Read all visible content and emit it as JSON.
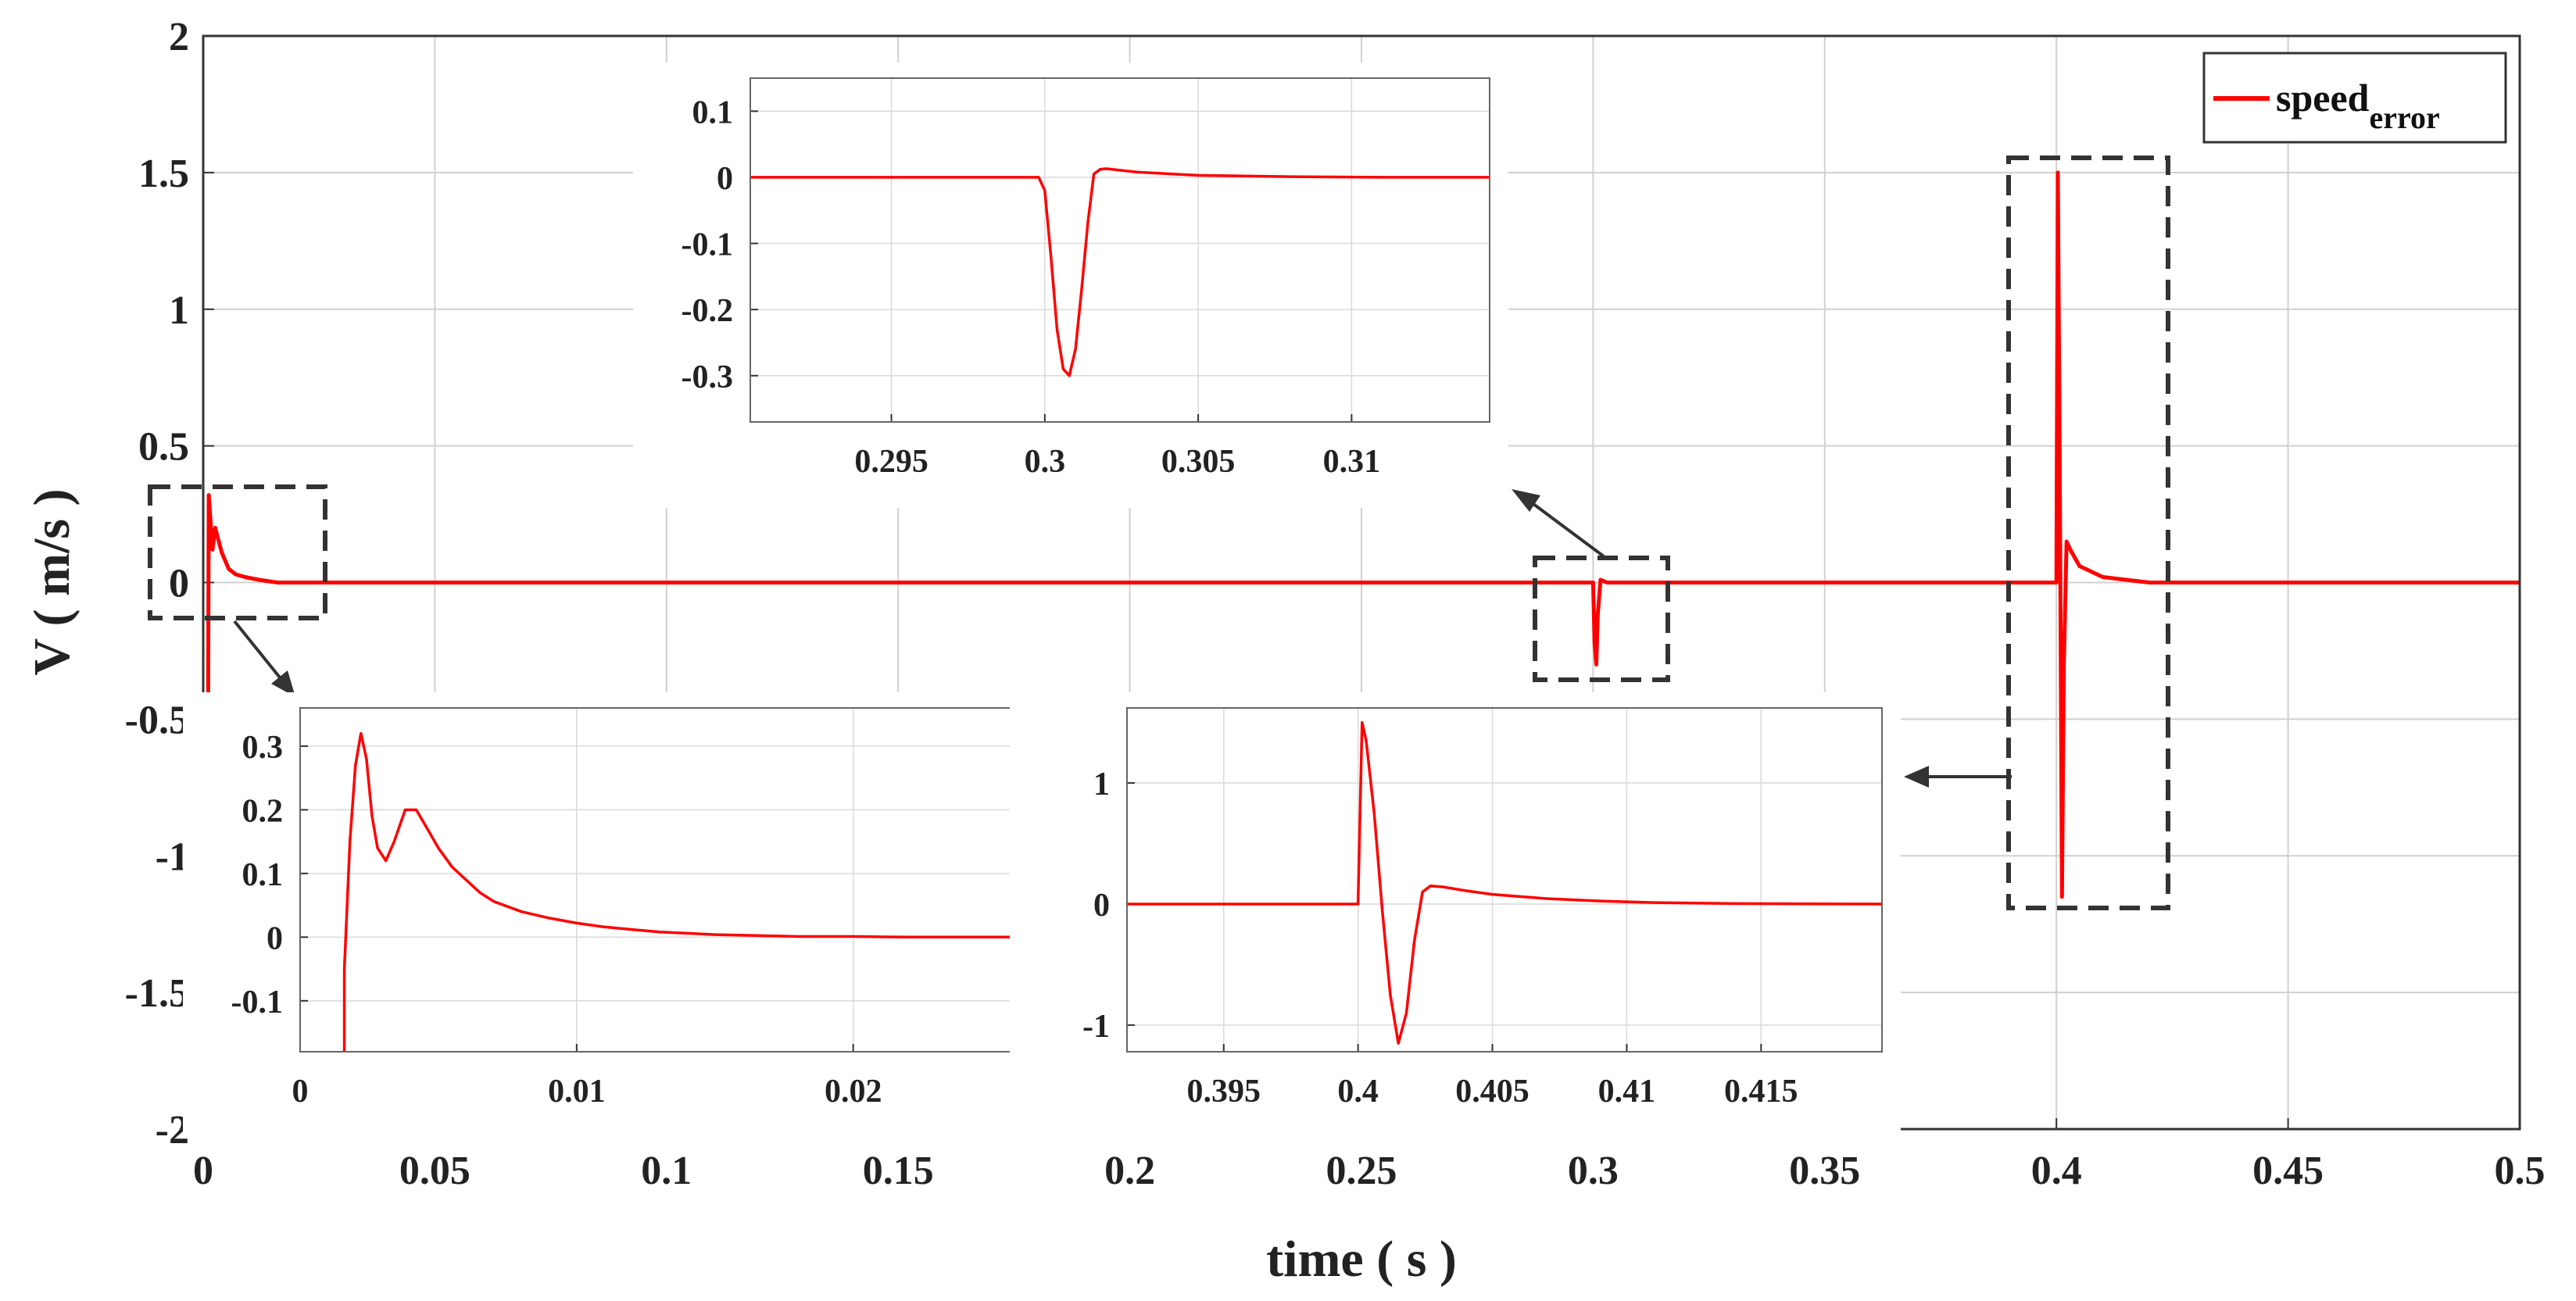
{
  "chart_data": [
    {
      "id": "main",
      "type": "line",
      "xlabel": "time ( s )",
      "ylabel": "V ( m/s )",
      "xlim": [
        0,
        0.5
      ],
      "ylim": [
        -2,
        2
      ],
      "xticks": [
        0,
        0.05,
        0.1,
        0.15,
        0.2,
        0.25,
        0.3,
        0.35,
        0.4,
        0.45,
        0.5
      ],
      "xtick_labels": [
        "0",
        "0.05",
        "0.1",
        "0.15",
        "0.2",
        "0.25",
        "0.3",
        "0.35",
        "0.4",
        "0.45",
        "0.5"
      ],
      "yticks": [
        -2,
        -1.5,
        -1,
        -0.5,
        0,
        0.5,
        1,
        1.5,
        2
      ],
      "ytick_labels": [
        "-2",
        "-1.5",
        "-1",
        "-0.5",
        "0",
        "0.5",
        "1",
        "1.5",
        "2"
      ],
      "grid": true,
      "legend": {
        "position": "top-right",
        "entries": [
          {
            "name": "speed",
            "subscript": "error",
            "color": "#ff0000"
          }
        ]
      },
      "series": [
        {
          "name": "speed_error",
          "color": "#ff0000",
          "x": [
            0,
            0.0008,
            0.0012,
            0.0016,
            0.002,
            0.0026,
            0.0032,
            0.004,
            0.0055,
            0.007,
            0.009,
            0.012,
            0.016,
            0.02,
            0.3,
            0.3003,
            0.3007,
            0.301,
            0.3016,
            0.303,
            0.4,
            0.4003,
            0.4007,
            0.4012,
            0.4016,
            0.4022,
            0.403,
            0.405,
            0.41,
            0.42,
            0.5
          ],
          "values": [
            -2,
            -2,
            0.32,
            0.22,
            0.12,
            0.2,
            0.16,
            0.11,
            0.05,
            0.03,
            0.02,
            0.01,
            0,
            0,
            0,
            -0.22,
            -0.3,
            -0.12,
            0.01,
            0,
            0,
            1.5,
            0.5,
            -1.15,
            -0.3,
            0.15,
            0.12,
            0.06,
            0.02,
            0,
            0
          ]
        }
      ],
      "annotations": [
        "zoom box around t = 0 to 0.02",
        "zoom box around t = 0.3",
        "zoom box around t = 0.4"
      ]
    },
    {
      "id": "inset-start",
      "type": "line",
      "xlim": [
        0,
        0.026
      ],
      "ylim": [
        -0.18,
        0.36
      ],
      "xticks": [
        0,
        0.01,
        0.02
      ],
      "xtick_labels": [
        "0",
        "0.01",
        "0.02"
      ],
      "yticks": [
        -0.1,
        0,
        0.1,
        0.2,
        0.3
      ],
      "ytick_labels": [
        "-0.1",
        "0",
        "0.1",
        "0.2",
        "0.3"
      ],
      "grid": true,
      "series": [
        {
          "name": "speed_error",
          "color": "#ff0000",
          "x": [
            0.0016,
            0.0016,
            0.0018,
            0.002,
            0.0022,
            0.0024,
            0.0026,
            0.0028,
            0.0031,
            0.0034,
            0.0038,
            0.0042,
            0.0046,
            0.005,
            0.0055,
            0.006,
            0.0065,
            0.007,
            0.008,
            0.009,
            0.01,
            0.011,
            0.012,
            0.013,
            0.014,
            0.015,
            0.016,
            0.018,
            0.02,
            0.022,
            0.024,
            0.026
          ],
          "values": [
            -0.18,
            -0.05,
            0.15,
            0.27,
            0.32,
            0.28,
            0.19,
            0.14,
            0.12,
            0.15,
            0.2,
            0.2,
            0.17,
            0.14,
            0.11,
            0.09,
            0.07,
            0.056,
            0.04,
            0.03,
            0.022,
            0.016,
            0.012,
            0.008,
            0.006,
            0.004,
            0.003,
            0.001,
            0.001,
            0,
            0,
            0
          ]
        }
      ]
    },
    {
      "id": "inset-mid",
      "type": "line",
      "xlim": [
        0.2904,
        0.3145
      ],
      "ylim": [
        -0.37,
        0.15
      ],
      "xticks": [
        0.295,
        0.3,
        0.305,
        0.31
      ],
      "xtick_labels": [
        "0.295",
        "0.3",
        "0.305",
        "0.31"
      ],
      "yticks": [
        -0.3,
        -0.2,
        -0.1,
        0,
        0.1
      ],
      "ytick_labels": [
        "-0.3",
        "-0.2",
        "-0.1",
        "0",
        "0.1"
      ],
      "grid": true,
      "series": [
        {
          "name": "speed_error",
          "color": "#ff0000",
          "x": [
            0.2904,
            0.296,
            0.2998,
            0.3,
            0.3002,
            0.3004,
            0.3006,
            0.3008,
            0.301,
            0.3012,
            0.3014,
            0.3016,
            0.3018,
            0.302,
            0.303,
            0.305,
            0.308,
            0.311,
            0.3145
          ],
          "values": [
            0,
            0,
            0,
            -0.02,
            -0.12,
            -0.23,
            -0.29,
            -0.3,
            -0.26,
            -0.17,
            -0.07,
            0.005,
            0.012,
            0.013,
            0.008,
            0.003,
            0.001,
            0,
            0
          ]
        }
      ]
    },
    {
      "id": "inset-end",
      "type": "line",
      "xlim": [
        0.3914,
        0.4195
      ],
      "ylim": [
        -1.22,
        1.62
      ],
      "xticks": [
        0.395,
        0.4,
        0.405,
        0.41,
        0.415
      ],
      "xtick_labels": [
        "0.395",
        "0.4",
        "0.405",
        "0.41",
        "0.415"
      ],
      "yticks": [
        -1,
        0,
        1
      ],
      "ytick_labels": [
        "-1",
        "0",
        "1"
      ],
      "grid": true,
      "series": [
        {
          "name": "speed_error",
          "color": "#ff0000",
          "x": [
            0.3914,
            0.3998,
            0.4,
            0.40015,
            0.4003,
            0.4006,
            0.4009,
            0.4012,
            0.4015,
            0.4018,
            0.4021,
            0.4024,
            0.4027,
            0.4032,
            0.404,
            0.405,
            0.407,
            0.409,
            0.411,
            0.414,
            0.4195
          ],
          "values": [
            0,
            0,
            0,
            1.5,
            1.35,
            0.75,
            -0.05,
            -0.75,
            -1.15,
            -0.9,
            -0.3,
            0.1,
            0.15,
            0.14,
            0.11,
            0.08,
            0.045,
            0.025,
            0.012,
            0.004,
            0
          ]
        }
      ]
    }
  ]
}
